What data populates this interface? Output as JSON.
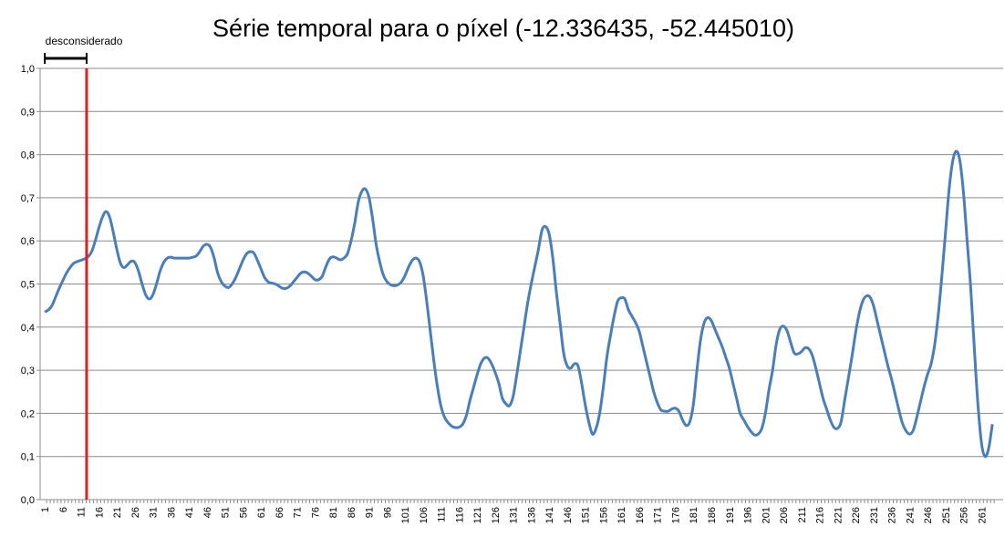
{
  "chart_data": {
    "type": "line",
    "title": "Série temporal para o píxel (-12.336435, -52.445010)",
    "annotation": "desconsiderado",
    "cutoff": 12.6,
    "cutoff_color": "#e02020",
    "color": "#4a7ebb",
    "grid": true,
    "xlim": [
      -0.3,
      267
    ],
    "ylim": [
      0,
      1
    ],
    "yticks": [
      {
        "value": 0,
        "label": "0,0"
      },
      {
        "value": 0.1,
        "label": "0,1"
      },
      {
        "value": 0.2,
        "label": "0,2"
      },
      {
        "value": 0.3,
        "label": "0,3"
      },
      {
        "value": 0.4,
        "label": "0,4"
      },
      {
        "value": 0.5,
        "label": "0,5"
      },
      {
        "value": 0.6,
        "label": "0,6"
      },
      {
        "value": 0.7,
        "label": "0,7"
      },
      {
        "value": 0.8,
        "label": "0,8"
      },
      {
        "value": 0.9,
        "label": "0,9"
      },
      {
        "value": 1,
        "label": "1,0"
      }
    ],
    "xticks": [
      1,
      6,
      11,
      16,
      21,
      26,
      31,
      36,
      41,
      46,
      51,
      56,
      61,
      66,
      71,
      76,
      81,
      86,
      91,
      96,
      101,
      106,
      111,
      116,
      121,
      126,
      131,
      136,
      141,
      146,
      151,
      156,
      161,
      166,
      171,
      176,
      181,
      186,
      191,
      196,
      201,
      206,
      211,
      216,
      221,
      226,
      231,
      236,
      241,
      246,
      251,
      256,
      261
    ],
    "x": [
      1,
      2,
      3,
      4,
      5,
      6,
      7,
      8,
      9,
      10,
      11,
      12,
      13,
      14,
      15,
      16,
      17,
      18,
      19,
      20,
      21,
      22,
      23,
      24,
      25,
      26,
      27,
      28,
      29,
      30,
      31,
      32,
      33,
      34,
      35,
      36,
      37,
      38,
      39,
      40,
      41,
      42,
      43,
      44,
      45,
      46,
      47,
      48,
      49,
      50,
      51,
      52,
      53,
      54,
      55,
      56,
      57,
      58,
      59,
      60,
      61,
      62,
      63,
      64,
      65,
      66,
      67,
      68,
      69,
      70,
      71,
      72,
      73,
      74,
      75,
      76,
      77,
      78,
      79,
      80,
      81,
      82,
      83,
      84,
      85,
      86,
      87,
      88,
      89,
      90,
      91,
      92,
      93,
      94,
      95,
      96,
      97,
      98,
      99,
      100,
      101,
      102,
      103,
      104,
      105,
      106,
      107,
      108,
      109,
      110,
      111,
      112,
      113,
      114,
      115,
      116,
      117,
      118,
      119,
      120,
      121,
      122,
      123,
      124,
      125,
      126,
      127,
      128,
      129,
      130,
      131,
      132,
      133,
      134,
      135,
      136,
      137,
      138,
      139,
      140,
      141,
      142,
      143,
      144,
      145,
      146,
      147,
      148,
      149,
      150,
      151,
      152,
      153,
      154,
      155,
      156,
      157,
      158,
      159,
      160,
      161,
      162,
      163,
      164,
      165,
      166,
      167,
      168,
      169,
      170,
      171,
      172,
      173,
      174,
      175,
      176,
      177,
      178,
      179,
      180,
      181,
      182,
      183,
      184,
      185,
      186,
      187,
      188,
      189,
      190,
      191,
      192,
      193,
      194,
      195,
      196,
      197,
      198,
      199,
      200,
      201,
      202,
      203,
      204,
      205,
      206,
      207,
      208,
      209,
      210,
      211,
      212,
      213,
      214,
      215,
      216,
      217,
      218,
      219,
      220,
      221,
      222,
      223,
      224,
      225,
      226,
      227,
      228,
      229,
      230,
      231,
      232,
      233,
      234,
      235,
      236,
      237,
      238,
      239,
      240,
      241,
      242,
      243,
      244,
      245,
      246,
      247,
      248,
      249,
      250,
      251,
      252,
      253,
      254,
      255,
      256,
      257,
      258,
      259,
      260,
      261,
      262,
      263,
      264
    ],
    "values": [
      0.435,
      0.44,
      0.45,
      0.47,
      0.49,
      0.508,
      0.525,
      0.538,
      0.548,
      0.552,
      0.555,
      0.558,
      0.563,
      0.575,
      0.6,
      0.63,
      0.655,
      0.668,
      0.655,
      0.62,
      0.58,
      0.548,
      0.538,
      0.545,
      0.553,
      0.55,
      0.53,
      0.5,
      0.475,
      0.465,
      0.475,
      0.5,
      0.53,
      0.55,
      0.56,
      0.562,
      0.56,
      0.56,
      0.56,
      0.56,
      0.56,
      0.562,
      0.565,
      0.575,
      0.588,
      0.592,
      0.585,
      0.56,
      0.525,
      0.505,
      0.495,
      0.492,
      0.5,
      0.515,
      0.535,
      0.555,
      0.57,
      0.575,
      0.572,
      0.555,
      0.535,
      0.515,
      0.505,
      0.502,
      0.5,
      0.495,
      0.49,
      0.49,
      0.495,
      0.505,
      0.515,
      0.525,
      0.528,
      0.525,
      0.518,
      0.51,
      0.51,
      0.518,
      0.54,
      0.558,
      0.563,
      0.56,
      0.556,
      0.56,
      0.57,
      0.6,
      0.64,
      0.69,
      0.715,
      0.72,
      0.7,
      0.65,
      0.59,
      0.55,
      0.52,
      0.505,
      0.498,
      0.496,
      0.498,
      0.505,
      0.52,
      0.54,
      0.555,
      0.56,
      0.552,
      0.52,
      0.46,
      0.39,
      0.32,
      0.26,
      0.215,
      0.19,
      0.178,
      0.17,
      0.167,
      0.168,
      0.175,
      0.195,
      0.23,
      0.26,
      0.29,
      0.315,
      0.328,
      0.328,
      0.315,
      0.295,
      0.27,
      0.235,
      0.222,
      0.218,
      0.24,
      0.29,
      0.345,
      0.4,
      0.455,
      0.5,
      0.54,
      0.58,
      0.625,
      0.633,
      0.615,
      0.56,
      0.48,
      0.41,
      0.34,
      0.31,
      0.305,
      0.315,
      0.31,
      0.27,
      0.22,
      0.18,
      0.152,
      0.165,
      0.2,
      0.26,
      0.33,
      0.38,
      0.425,
      0.46,
      0.468,
      0.465,
      0.44,
      0.425,
      0.41,
      0.39,
      0.355,
      0.32,
      0.285,
      0.25,
      0.225,
      0.208,
      0.205,
      0.205,
      0.21,
      0.212,
      0.205,
      0.185,
      0.172,
      0.18,
      0.22,
      0.3,
      0.37,
      0.41,
      0.422,
      0.415,
      0.395,
      0.375,
      0.355,
      0.33,
      0.305,
      0.27,
      0.235,
      0.2,
      0.185,
      0.17,
      0.158,
      0.15,
      0.152,
      0.165,
      0.2,
      0.255,
      0.3,
      0.36,
      0.395,
      0.402,
      0.392,
      0.365,
      0.34,
      0.338,
      0.343,
      0.352,
      0.35,
      0.335,
      0.305,
      0.27,
      0.235,
      0.21,
      0.185,
      0.168,
      0.165,
      0.18,
      0.23,
      0.28,
      0.33,
      0.385,
      0.43,
      0.46,
      0.472,
      0.47,
      0.45,
      0.415,
      0.38,
      0.345,
      0.31,
      0.28,
      0.245,
      0.21,
      0.178,
      0.16,
      0.152,
      0.16,
      0.19,
      0.225,
      0.26,
      0.29,
      0.315,
      0.36,
      0.43,
      0.52,
      0.62,
      0.72,
      0.785,
      0.808,
      0.785,
      0.71,
      0.6,
      0.49,
      0.35,
      0.22,
      0.13,
      0.1,
      0.12,
      0.175
    ]
  }
}
